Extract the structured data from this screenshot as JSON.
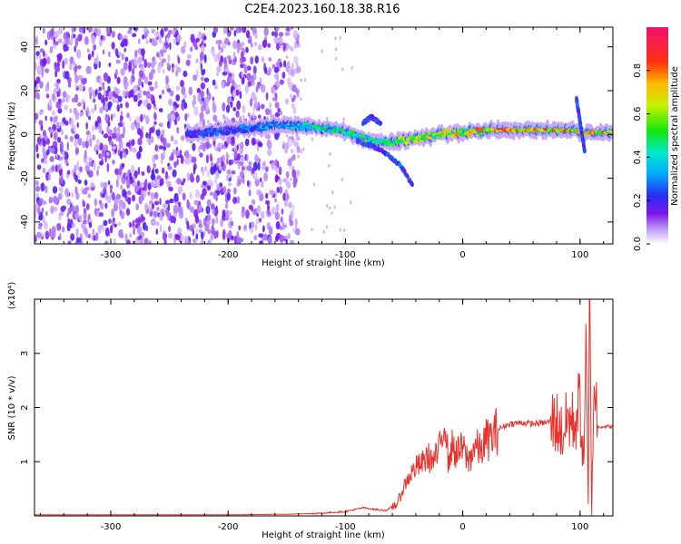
{
  "figure_title": "C2E4.2023.160.18.38.R16",
  "chart_data": [
    {
      "type": "heatmap",
      "title": "C2E4.2023.160.18.38.R16",
      "xlabel": "Height of straight line (km)",
      "ylabel": "Frequency (Hz)",
      "xlim": [
        -365,
        128
      ],
      "ylim": [
        -50,
        49
      ],
      "xticks": [
        -300,
        -200,
        -100,
        0,
        100
      ],
      "yticks": [
        -40,
        -20,
        0,
        20,
        40
      ],
      "xtick_labels": [
        "-300",
        "-200",
        "-100",
        "0",
        "100"
      ],
      "ytick_labels": [
        "-40",
        "-20",
        "0",
        "20",
        "40"
      ],
      "noise_region_x": [
        -365,
        -150
      ],
      "signal_ridge": {
        "x": [
          -235,
          -200,
          -160,
          -140,
          -120,
          -100,
          -85,
          -70,
          -55,
          -40,
          -20,
          0,
          25,
          50,
          75,
          95,
          103,
          110,
          128
        ],
        "freq": [
          0,
          2,
          4,
          4,
          3,
          1,
          -2,
          -4,
          -3,
          -2,
          0,
          1,
          2,
          2,
          2,
          2,
          0,
          1,
          1
        ],
        "amplitude": [
          0.25,
          0.3,
          0.4,
          0.45,
          0.5,
          0.55,
          0.55,
          0.55,
          0.6,
          0.7,
          0.75,
          0.8,
          0.85,
          0.9,
          0.9,
          0.9,
          0.7,
          0.85,
          0.85
        ]
      },
      "branches": [
        {
          "x": [
            -90,
            -75,
            -62,
            -52,
            -43
          ],
          "freq": [
            -3,
            -6,
            -10,
            -15,
            -23
          ]
        },
        {
          "x": [
            -85,
            -78,
            -70
          ],
          "freq": [
            5,
            8,
            5
          ]
        },
        {
          "x": [
            97,
            100,
            104
          ],
          "freq": [
            16,
            6,
            -8
          ]
        }
      ],
      "colorbar": {
        "label": "Normalized spectral amplitude",
        "range": [
          0,
          1
        ],
        "ticks": [
          0.0,
          0.2,
          0.4,
          0.6,
          0.8
        ],
        "tick_labels": [
          "0.0",
          "0.2",
          "0.4",
          "0.6",
          "0.8"
        ]
      }
    },
    {
      "type": "line",
      "xlabel": "Height of straight line (km)",
      "ylabel": "SNR (10 * v/v)",
      "scale_label": "(x10⁴)",
      "xlim": [
        -365,
        128
      ],
      "ylim": [
        0,
        4
      ],
      "xticks": [
        -300,
        -200,
        -100,
        0,
        100
      ],
      "yticks": [
        1,
        2,
        3
      ],
      "xtick_labels": [
        "-300",
        "-200",
        "-100",
        "0",
        "100"
      ],
      "ytick_labels": [
        "1",
        "2",
        "3"
      ],
      "series": [
        {
          "name": "SNR",
          "color": "#e8312b",
          "x": [
            -365,
            -300,
            -250,
            -200,
            -150,
            -120,
            -100,
            -85,
            -75,
            -65,
            -55,
            -50,
            -45,
            -40,
            -35,
            -30,
            -25,
            -20,
            -15,
            -12,
            -10,
            -5,
            0,
            5,
            10,
            15,
            20,
            25,
            30,
            40,
            50,
            60,
            70,
            80,
            85,
            90,
            95,
            100,
            103,
            105,
            107,
            108,
            110,
            112,
            115,
            120,
            128
          ],
          "y": [
            0.02,
            0.02,
            0.02,
            0.02,
            0.03,
            0.05,
            0.08,
            0.15,
            0.12,
            0.1,
            0.25,
            0.55,
            0.75,
            0.9,
            0.95,
            1.1,
            1.0,
            1.2,
            1.85,
            0.9,
            1.3,
            1.15,
            1.25,
            1.0,
            1.3,
            1.2,
            1.4,
            1.45,
            1.6,
            1.7,
            1.72,
            1.7,
            1.72,
            1.75,
            1.5,
            1.8,
            1.7,
            2.1,
            0.9,
            3.1,
            0.1,
            4.0,
            0.1,
            2.7,
            1.65,
            1.65,
            1.65
          ]
        }
      ]
    }
  ]
}
